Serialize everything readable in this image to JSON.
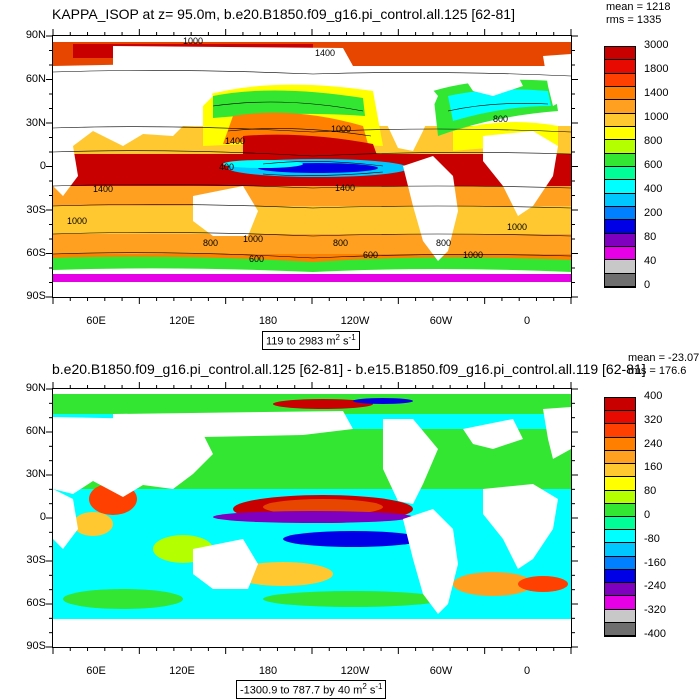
{
  "panel_top": {
    "title": "KAPPA_ISOP at z=  95.0m, b.e20.B1850.f09_g16.pi_control.all.125 [62-81]",
    "mean": "mean = 1218",
    "rms": "rms = 1335",
    "range_prefix": "119 to 2983 m",
    "range_unit_sup": "2",
    "range_unit_s": " s",
    "range_unit_sup2": "-1",
    "colorbar": {
      "labels": [
        "3000",
        "1800",
        "1400",
        "1000",
        "800",
        "600",
        "400",
        "200",
        "80",
        "40",
        "0"
      ],
      "colors": [
        "#c80000",
        "#e60a00",
        "#ff4000",
        "#ff7f00",
        "#ffa020",
        "#ffc830",
        "#ffff00",
        "#b4ff00",
        "#32e632",
        "#00ff96",
        "#00ffff",
        "#00c8ff",
        "#0080ff",
        "#0000e6",
        "#8000c0",
        "#e600e6",
        "#c8c8c8",
        "#6e6e6e"
      ]
    },
    "contour_labels": [
      "1000",
      "1400",
      "1400",
      "1000",
      "800",
      "1400",
      "1000",
      "400",
      "1400",
      "1000",
      "800",
      "1000",
      "600",
      "800",
      "600",
      "1000",
      "800"
    ]
  },
  "panel_bottom": {
    "title": "b.e20.B1850.f09_g16.pi_control.all.125 [62-81] - b.e15.B1850.f09_g16.pi_control.all.119 [62-81]",
    "mean": "mean = -23.07",
    "rms": "rms = 176.6",
    "range_prefix": "-1300.9 to 787.7 by 40 m",
    "range_unit_sup": "2",
    "range_unit_s": " s",
    "range_unit_sup2": "-1",
    "colorbar": {
      "labels": [
        "400",
        "320",
        "240",
        "160",
        "80",
        "0",
        "-80",
        "-160",
        "-240",
        "-320",
        "-400"
      ],
      "colors": [
        "#c80000",
        "#e60a00",
        "#ff4000",
        "#ff7f00",
        "#ffa020",
        "#ffc830",
        "#ffff00",
        "#b4ff00",
        "#32e632",
        "#00ff96",
        "#00ffff",
        "#00c8ff",
        "#0080ff",
        "#0000e6",
        "#8000c0",
        "#e600e6",
        "#c8c8c8",
        "#6e6e6e"
      ]
    }
  },
  "axes": {
    "lat_labels": [
      "90N",
      "60N",
      "30N",
      "0",
      "30S",
      "60S",
      "90S"
    ],
    "lon_labels": [
      "60E",
      "120E",
      "180",
      "120W",
      "60W",
      "0"
    ]
  }
}
